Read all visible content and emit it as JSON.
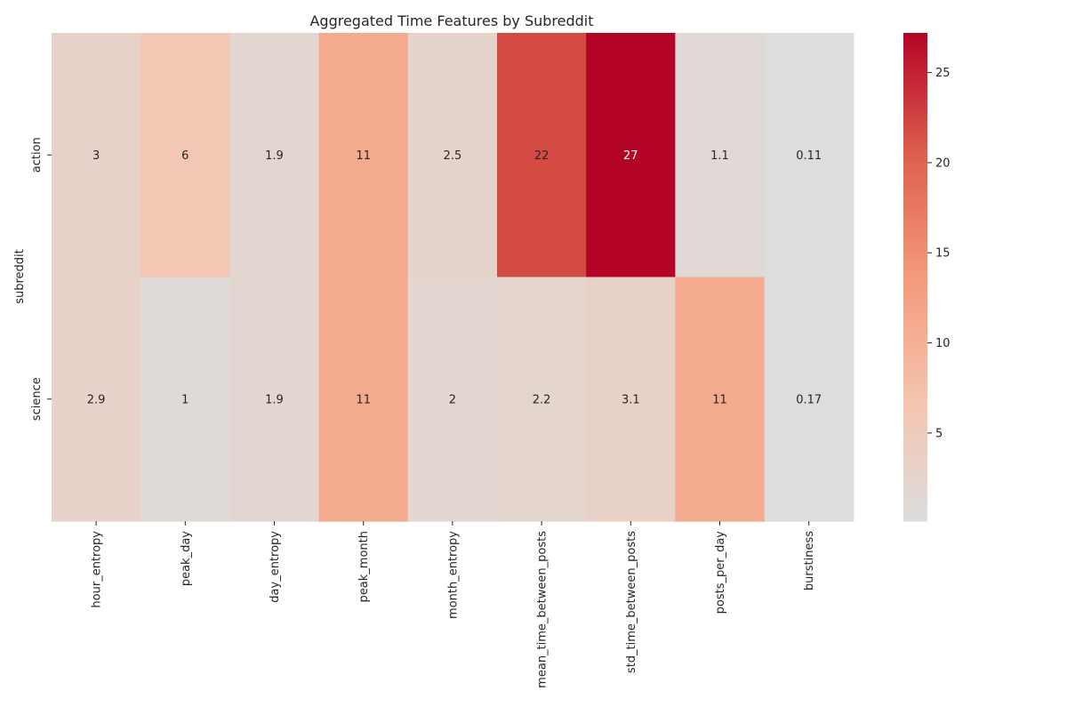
{
  "chart_data": {
    "type": "heatmap",
    "title": "Aggregated Time Features by Subreddit",
    "xlabel": "",
    "ylabel": "subreddit",
    "x_categories": [
      "hour_entropy",
      "peak_day",
      "day_entropy",
      "peak_month",
      "month_entropy",
      "mean_time_between_posts",
      "std_time_between_posts",
      "posts_per_day",
      "burstiness"
    ],
    "y_categories": [
      "action",
      "science"
    ],
    "values": [
      [
        3.0,
        6.0,
        1.9,
        11.0,
        2.5,
        22.0,
        27.2,
        1.1,
        0.11
      ],
      [
        2.9,
        1.0,
        1.9,
        11.0,
        2.0,
        2.2,
        3.1,
        11.0,
        0.17
      ]
    ],
    "annotations": [
      [
        "3",
        "6",
        "1.9",
        "11",
        "2.5",
        "22",
        "27",
        "1.1",
        "0.11"
      ],
      [
        "2.9",
        "1",
        "1.9",
        "11",
        "2",
        "2.2",
        "3.1",
        "11",
        "0.17"
      ]
    ],
    "colormap": "coolwarm",
    "vmin": 0.11,
    "vmax": 27.2,
    "colorbar_ticks": [
      5,
      10,
      15,
      20,
      25
    ],
    "grid": false,
    "legend": "colorbar-right"
  }
}
